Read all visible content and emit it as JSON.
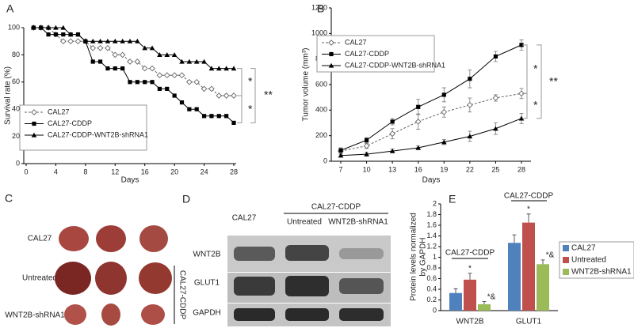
{
  "chart_data": [
    {
      "type": "line",
      "panel": "A",
      "xlabel": "Days",
      "ylabel": "Survival rate (%)",
      "x": [
        1,
        2,
        3,
        4,
        5,
        6,
        7,
        8,
        9,
        10,
        11,
        12,
        13,
        14,
        15,
        16,
        17,
        18,
        19,
        20,
        21,
        22,
        23,
        24,
        25,
        26,
        27,
        28
      ],
      "xlim": [
        0,
        28
      ],
      "xticks": [
        0,
        4,
        8,
        12,
        16,
        20,
        24,
        28
      ],
      "ylim": [
        0,
        100
      ],
      "yticks": [
        0,
        20,
        40,
        60,
        80,
        100
      ],
      "legend": "lower left",
      "series": [
        {
          "name": "CAL27",
          "color": "#666666",
          "dash": true,
          "marker": "diamond",
          "values": [
            100,
            100,
            100,
            95,
            90,
            90,
            90,
            90,
            85,
            85,
            85,
            80,
            80,
            75,
            75,
            70,
            70,
            65,
            65,
            65,
            65,
            60,
            60,
            55,
            55,
            50,
            50,
            50
          ]
        },
        {
          "name": "CAL27-CDDP",
          "color": "#000000",
          "dash": false,
          "marker": "square",
          "values": [
            100,
            100,
            95,
            95,
            95,
            95,
            95,
            90,
            75,
            75,
            70,
            70,
            70,
            60,
            60,
            60,
            60,
            55,
            55,
            50,
            45,
            40,
            40,
            35,
            35,
            35,
            35,
            30
          ]
        },
        {
          "name": "CAL27-CDDP-WNT2B-shRNA1",
          "color": "#000000",
          "dash": false,
          "marker": "triangle",
          "values": [
            100,
            100,
            100,
            100,
            100,
            95,
            95,
            90,
            90,
            90,
            90,
            90,
            90,
            90,
            90,
            85,
            85,
            80,
            80,
            80,
            75,
            75,
            75,
            75,
            70,
            70,
            70,
            70
          ]
        }
      ],
      "annotations": [
        "*",
        "*",
        "**"
      ]
    },
    {
      "type": "line",
      "panel": "B",
      "xlabel": "Days",
      "ylabel": "Tumor volume (mm³)",
      "x": [
        7,
        10,
        13,
        16,
        19,
        22,
        25,
        28
      ],
      "xlim": [
        7,
        28
      ],
      "xticks": [
        7,
        10,
        13,
        16,
        19,
        22,
        25,
        28
      ],
      "ylim": [
        0,
        1200
      ],
      "yticks": [
        0,
        200,
        400,
        600,
        800,
        1000,
        1200
      ],
      "legend": "upper left",
      "series": [
        {
          "name": "CAL27",
          "color": "#666666",
          "dash": true,
          "marker": "diamond",
          "values": [
            80,
            120,
            215,
            310,
            385,
            440,
            495,
            530
          ],
          "errors": [
            20,
            20,
            40,
            60,
            40,
            55,
            25,
            40
          ]
        },
        {
          "name": "CAL27-CDDP",
          "color": "#000000",
          "dash": false,
          "marker": "square",
          "values": [
            85,
            165,
            310,
            425,
            520,
            645,
            820,
            910
          ],
          "errors": [
            20,
            20,
            25,
            60,
            55,
            70,
            40,
            40
          ]
        },
        {
          "name": "CAL27-CDDP-WNT2B-shRNA1",
          "color": "#000000",
          "dash": false,
          "marker": "triangle",
          "values": [
            45,
            55,
            80,
            105,
            150,
            195,
            255,
            335
          ],
          "errors": [
            10,
            15,
            15,
            15,
            20,
            40,
            45,
            40
          ]
        }
      ],
      "annotations": [
        "*",
        "*",
        "**"
      ]
    },
    {
      "type": "bar",
      "panel": "E",
      "ylabel": [
        "Protein levels normalized",
        "by GAPDH"
      ],
      "categories": [
        "WNT2B",
        "GLUT1"
      ],
      "ylim": [
        0,
        2
      ],
      "yticks": [
        0,
        0.2,
        0.4,
        0.6,
        0.8,
        1,
        1.2,
        1.4,
        1.6,
        1.8,
        2
      ],
      "legend": "right",
      "series": [
        {
          "name": "CAL27",
          "color": "#4f81bd",
          "values": [
            0.33,
            1.27
          ],
          "errors": [
            0.08,
            0.15
          ]
        },
        {
          "name": "Untreated",
          "color": "#c0504d",
          "values": [
            0.58,
            1.65
          ],
          "errors": [
            0.12,
            0.16
          ]
        },
        {
          "name": "WNT2B-shRNA1",
          "color": "#9bbb59",
          "values": [
            0.12,
            0.87
          ],
          "errors": [
            0.05,
            0.08
          ]
        }
      ],
      "annotations": [
        "CAL27-CDDP",
        "*",
        "*&",
        "CAL27-CDDP",
        "*",
        "*&"
      ]
    }
  ],
  "panel_c": {
    "label": "C",
    "rows": [
      "CAL27",
      "Untreated",
      "WNT2B-shRNA1"
    ],
    "group": "CAL27-CDDP"
  },
  "panel_d": {
    "label": "D",
    "columns": [
      "CAL27",
      "Untreated",
      "WNT2B-shRNA1"
    ],
    "group": "CAL27-CDDP",
    "rows": [
      "WNT2B",
      "GLUT1",
      "GAPDH"
    ]
  }
}
